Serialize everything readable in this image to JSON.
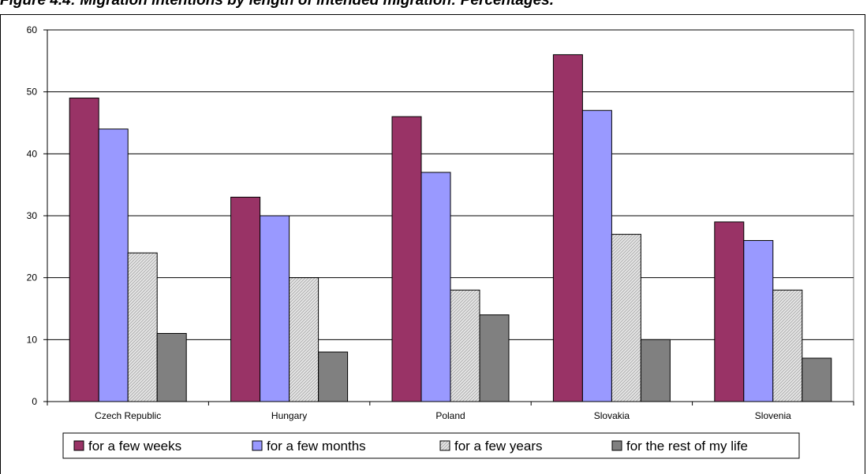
{
  "figure": {
    "title": "Figure 4.4: Migration intentions by length of intended migration: Percentages."
  },
  "colors": {
    "few_weeks": "#993366",
    "few_months": "#9999ff",
    "few_years": "#d9d9d9",
    "rest_of_life": "#808080",
    "gridline": "#000000"
  },
  "chart_data": {
    "type": "bar",
    "title": "",
    "xlabel": "",
    "ylabel": "",
    "ylim": [
      0,
      60
    ],
    "yticks": [
      0,
      10,
      20,
      30,
      40,
      50,
      60
    ],
    "grid": true,
    "legend_position": "bottom",
    "categories": [
      "Czech Republic",
      "Hungary",
      "Poland",
      "Slovakia",
      "Slovenia"
    ],
    "series": [
      {
        "name": "for a few weeks",
        "color_key": "few_weeks",
        "pattern": "solid",
        "values": [
          49,
          33,
          46,
          56,
          29
        ]
      },
      {
        "name": "for a few months",
        "color_key": "few_months",
        "pattern": "solid",
        "values": [
          44,
          30,
          37,
          47,
          26
        ]
      },
      {
        "name": "for a few years",
        "color_key": "few_years",
        "pattern": "hatched",
        "values": [
          24,
          20,
          18,
          27,
          18
        ]
      },
      {
        "name": "for the rest of my life",
        "color_key": "rest_of_life",
        "pattern": "solid",
        "values": [
          11,
          8,
          14,
          10,
          7
        ]
      }
    ]
  }
}
